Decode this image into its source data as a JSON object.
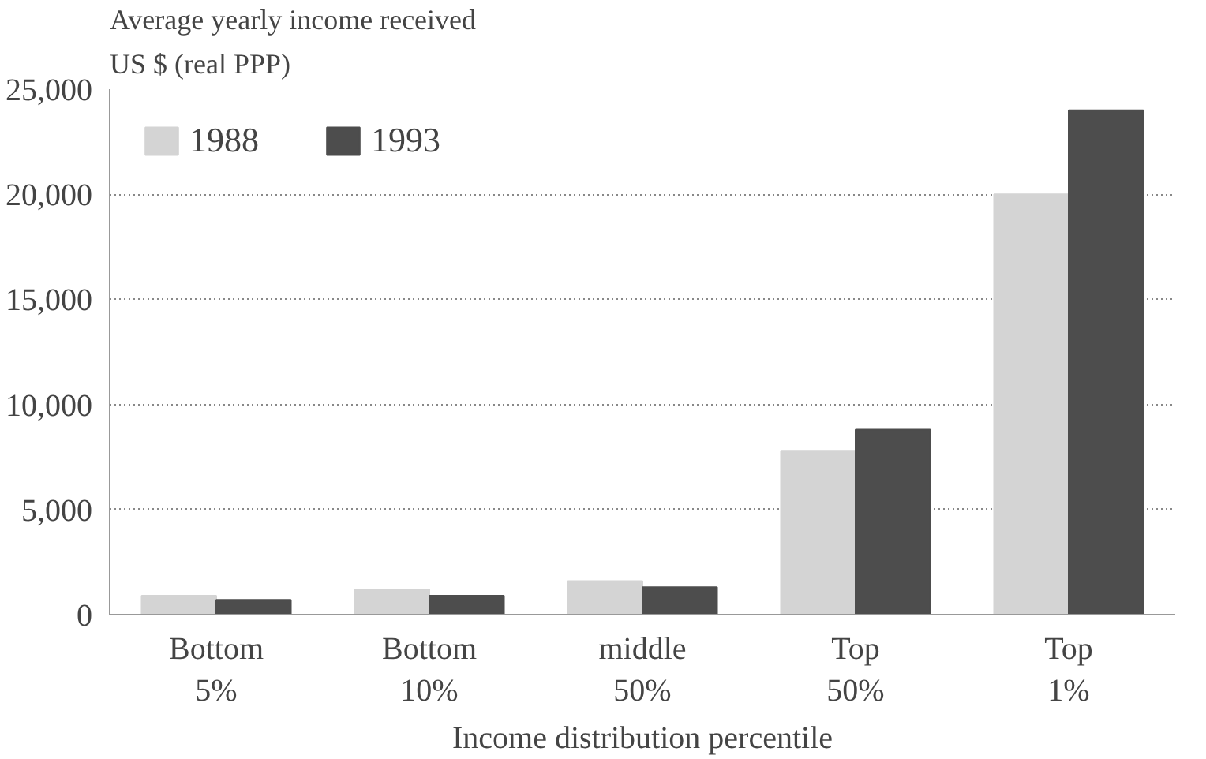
{
  "chart_data": {
    "type": "bar",
    "title": "Average yearly income received",
    "subtitle": "US $ (real PPP)",
    "xlabel": "Income distribution percentile",
    "categories": [
      "Bottom\n5%",
      "Bottom\n10%",
      "middle\n50%",
      "Top\n50%",
      "Top\n1%"
    ],
    "series": [
      {
        "name": "1988",
        "color": "#d4d4d4",
        "values": [
          900,
          1200,
          1600,
          7800,
          20000
        ]
      },
      {
        "name": "1993",
        "color": "#4d4d4d",
        "values": [
          700,
          900,
          1300,
          8800,
          24000
        ]
      }
    ],
    "ylim": [
      0,
      25000
    ],
    "yticks": [
      {
        "value": 0,
        "label": "0"
      },
      {
        "value": 5000,
        "label": "5,000"
      },
      {
        "value": 10000,
        "label": "10,000"
      },
      {
        "value": 15000,
        "label": "15,000"
      },
      {
        "value": 20000,
        "label": "20,000"
      },
      {
        "value": 25000,
        "label": "25,000"
      }
    ],
    "grid": "y",
    "legend": "top left"
  }
}
